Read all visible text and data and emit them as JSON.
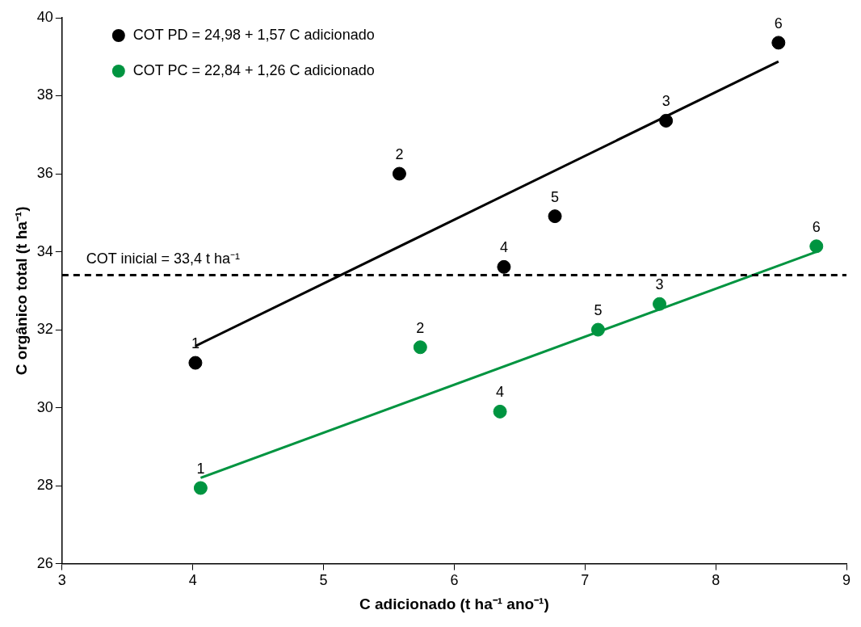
{
  "chart_data": {
    "type": "scatter",
    "xlabel": "C adicionado (t ha⁻¹ ano⁻¹)",
    "ylabel": "C orgânico total (t ha⁻¹)",
    "xlim": [
      3,
      9
    ],
    "xticks": [
      3,
      4,
      5,
      6,
      7,
      8,
      9
    ],
    "ylim": [
      26,
      40
    ],
    "yticks": [
      26,
      28,
      30,
      32,
      34,
      36,
      38,
      40
    ],
    "grid": false,
    "legend": "top left",
    "series": [
      {
        "name": "COT PD = 24,98 + 1,57 C adicionado",
        "color": "#000000",
        "marker": "circle",
        "x": [
          4.02,
          5.58,
          7.62,
          6.38,
          6.77,
          8.48
        ],
        "values": [
          31.15,
          36.0,
          37.36,
          33.61,
          34.91,
          39.36
        ]
      },
      {
        "name": "COT PC = 22,84 + 1,26 C adicionado",
        "color": "#009440",
        "marker": "circle",
        "x": [
          4.06,
          5.74,
          7.57,
          6.35,
          7.1,
          8.77
        ],
        "values": [
          27.94,
          31.55,
          32.66,
          29.9,
          32.0,
          34.14
        ]
      },
      {
        "type": "line",
        "color": "#000000",
        "marker": "none",
        "x": [
          4.02,
          8.48
        ],
        "values": [
          31.58,
          38.88
        ],
        "line_style": "solid"
      },
      {
        "type": "line",
        "color": "#009440",
        "marker": "none",
        "x": [
          4.06,
          8.77
        ],
        "values": [
          28.2,
          34.0
        ],
        "line_style": "solid"
      }
    ],
    "annotations": [
      {
        "text": "1",
        "x": 4.02,
        "y": 31.15
      },
      {
        "text": "2",
        "x": 5.58,
        "y": 36.0
      },
      {
        "text": "3",
        "x": 7.62,
        "y": 37.36
      },
      {
        "text": "4",
        "x": 6.38,
        "y": 33.61
      },
      {
        "text": "5",
        "x": 6.77,
        "y": 34.91
      },
      {
        "text": "6",
        "x": 8.48,
        "y": 39.36
      },
      {
        "text": "1",
        "x": 4.06,
        "y": 27.94
      },
      {
        "text": "2",
        "x": 5.74,
        "y": 31.55
      },
      {
        "text": "3",
        "x": 7.57,
        "y": 32.66
      },
      {
        "text": "4",
        "x": 6.35,
        "y": 29.9
      },
      {
        "text": "5",
        "x": 7.1,
        "y": 32.0
      },
      {
        "text": "6",
        "x": 8.77,
        "y": 34.14
      }
    ],
    "ref_lines": [
      {
        "axis": "y",
        "value": 33.4,
        "label": "COT inicial = 33,4 t ha⁻¹",
        "color": "#000000",
        "line_style": "dashed"
      }
    ]
  }
}
